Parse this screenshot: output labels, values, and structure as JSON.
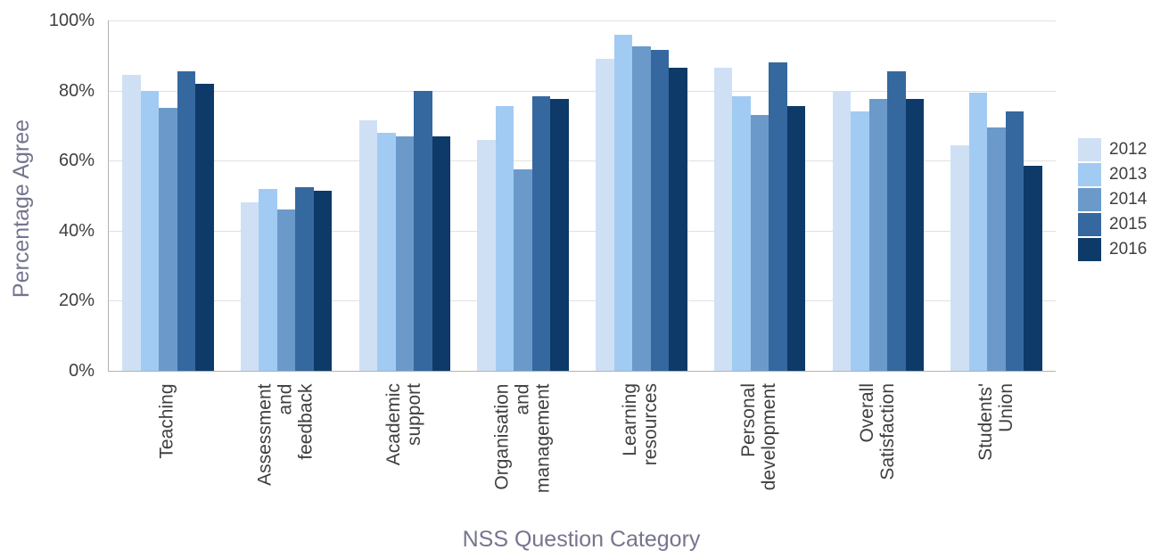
{
  "chart_data": {
    "type": "bar",
    "title": "",
    "xlabel": "NSS Question Category",
    "ylabel": "Percentage Agree",
    "ylim": [
      0,
      100
    ],
    "yticks": [
      0,
      20,
      40,
      60,
      80,
      100
    ],
    "ytick_suffix": "%",
    "grid": true,
    "legend_position": "right",
    "categories": [
      {
        "label": "Teaching",
        "lines": [
          "Teaching"
        ]
      },
      {
        "label": "Assessment and feedback",
        "lines": [
          "Assessment",
          "and",
          "feedback"
        ]
      },
      {
        "label": "Academic support",
        "lines": [
          "Academic",
          "support"
        ]
      },
      {
        "label": "Organisation and management",
        "lines": [
          "Organisation",
          "and",
          "management"
        ]
      },
      {
        "label": "Learning resources",
        "lines": [
          "Learning",
          "resources"
        ]
      },
      {
        "label": "Personal development",
        "lines": [
          "Personal",
          "development"
        ]
      },
      {
        "label": "Overall Satisfaction",
        "lines": [
          "Overall",
          "Satisfaction"
        ]
      },
      {
        "label": "Students' Union",
        "lines": [
          "Students'",
          "Union"
        ]
      }
    ],
    "series": [
      {
        "name": "2012",
        "color": "#cfe0f5",
        "values": [
          84.5,
          48,
          71.5,
          66,
          89,
          86.5,
          80,
          64.5
        ]
      },
      {
        "name": "2013",
        "color": "#a1cbf3",
        "values": [
          80,
          52,
          68,
          75.5,
          96,
          78.5,
          74,
          79.5
        ]
      },
      {
        "name": "2014",
        "color": "#6b9aca",
        "values": [
          75,
          46,
          67,
          57.5,
          92.5,
          73,
          77.5,
          69.5
        ]
      },
      {
        "name": "2015",
        "color": "#35689e",
        "values": [
          85.5,
          52.5,
          80,
          78.5,
          91.5,
          88,
          85.5,
          74
        ]
      },
      {
        "name": "2016",
        "color": "#0d3a68",
        "values": [
          82,
          51.5,
          67,
          77.5,
          86.5,
          75.5,
          77.5,
          58.5
        ]
      }
    ],
    "colors": {
      "grid": "#e0e0e0",
      "axis": "#b3b3b3",
      "tick_text": "#3f3f3f",
      "axis_title_text": "#75758f"
    }
  }
}
